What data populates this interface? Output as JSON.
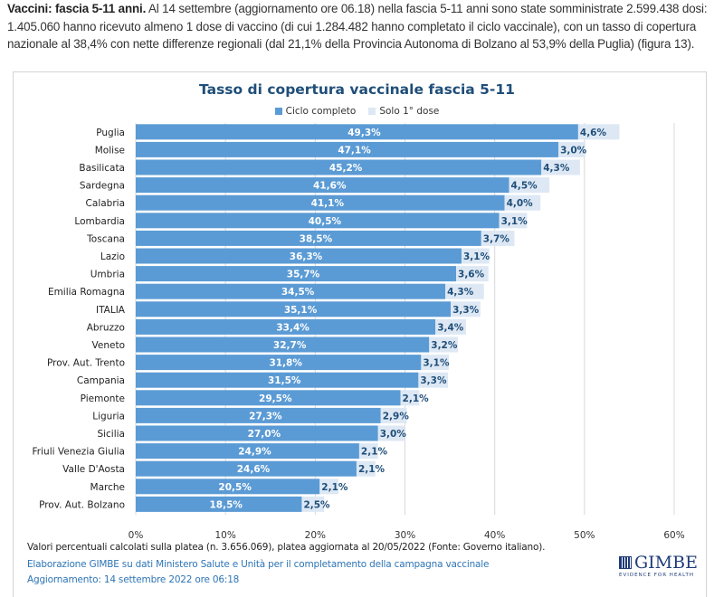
{
  "intro": {
    "lead": "Vaccini: fascia 5-11 anni.",
    "text": " Al 14 settembre (aggiornamento ore 06.18) nella fascia 5-11 anni sono state somministrate 2.599.438 dosi: 1.405.060 hanno ricevuto almeno 1 dose di vaccino (di cui 1.284.482 hanno completato il ciclo vaccinale), con un tasso di copertura nazionale al 38,4% con nette differenze regionali (dal 21,1% della Provincia Autonoma di Bolzano al 53,9% della Puglia) (figura 13)."
  },
  "colors": {
    "complete": "#5b9bd5",
    "first_dose": "#dde8f4",
    "title": "#1f4e79",
    "grid": "#d9d9d9"
  },
  "chart_data": {
    "type": "bar",
    "orientation": "horizontal",
    "stacked": true,
    "title": "Tasso di copertura vaccinale fascia 5-11",
    "legend": [
      "Ciclo completo",
      "Solo 1° dose"
    ],
    "legend_position": "top",
    "xlabel": "",
    "ylabel": "",
    "xlim": [
      0,
      60
    ],
    "x_ticks": [
      "0%",
      "10%",
      "20%",
      "30%",
      "40%",
      "50%",
      "60%"
    ],
    "grid": true,
    "categories": [
      "Puglia",
      "Molise",
      "Basilicata",
      "Sardegna",
      "Calabria",
      "Lombardia",
      "Toscana",
      "Lazio",
      "Umbria",
      "Emilia Romagna",
      "ITALIA",
      "Abruzzo",
      "Veneto",
      "Prov. Aut. Trento",
      "Campania",
      "Piemonte",
      "Liguria",
      "Sicilia",
      "Friuli Venezia Giulia",
      "Valle D'Aosta",
      "Marche",
      "Prov. Aut. Bolzano"
    ],
    "series": [
      {
        "name": "Ciclo completo",
        "values": [
          49.3,
          47.1,
          45.2,
          41.6,
          41.1,
          40.5,
          38.5,
          36.3,
          35.7,
          34.5,
          35.1,
          33.4,
          32.7,
          31.8,
          31.5,
          29.5,
          27.3,
          27.0,
          24.9,
          24.6,
          20.5,
          18.5
        ],
        "labels": [
          "49,3%",
          "47,1%",
          "45,2%",
          "41,6%",
          "41,1%",
          "40,5%",
          "38,5%",
          "36,3%",
          "35,7%",
          "34,5%",
          "35,1%",
          "33,4%",
          "32,7%",
          "31,8%",
          "31,5%",
          "29,5%",
          "27,3%",
          "27,0%",
          "24,9%",
          "24,6%",
          "20,5%",
          "18,5%"
        ]
      },
      {
        "name": "Solo 1° dose",
        "values": [
          4.6,
          3.0,
          4.3,
          4.5,
          4.0,
          3.1,
          3.7,
          3.1,
          3.6,
          4.3,
          3.3,
          3.4,
          3.2,
          3.1,
          3.3,
          2.1,
          2.9,
          3.0,
          2.1,
          2.1,
          2.1,
          2.5
        ],
        "labels": [
          "4,6%",
          "3,0%",
          "4,3%",
          "4,5%",
          "4,0%",
          "3,1%",
          "3,7%",
          "3,1%",
          "3,6%",
          "4,3%",
          "3,3%",
          "3,4%",
          "3,2%",
          "3,1%",
          "3,3%",
          "2,1%",
          "2,9%",
          "3,0%",
          "2,1%",
          "2,1%",
          "2,1%",
          "2,5%"
        ]
      }
    ]
  },
  "footer": {
    "note": "Valori percentuali calcolati sulla platea (n. 3.656.069), platea aggiornata al 20/05/2022 (Fonte: Governo italiano).",
    "credit_line1": "Elaborazione GIMBE su dati Ministero Salute e Unità per il completamento della campagna vaccinale",
    "credit_line2": "Aggiornamento: 14 settembre 2022 ore 06:18",
    "logo_text": "GIMBE",
    "logo_tagline": "EVIDENCE FOR HEALTH"
  }
}
